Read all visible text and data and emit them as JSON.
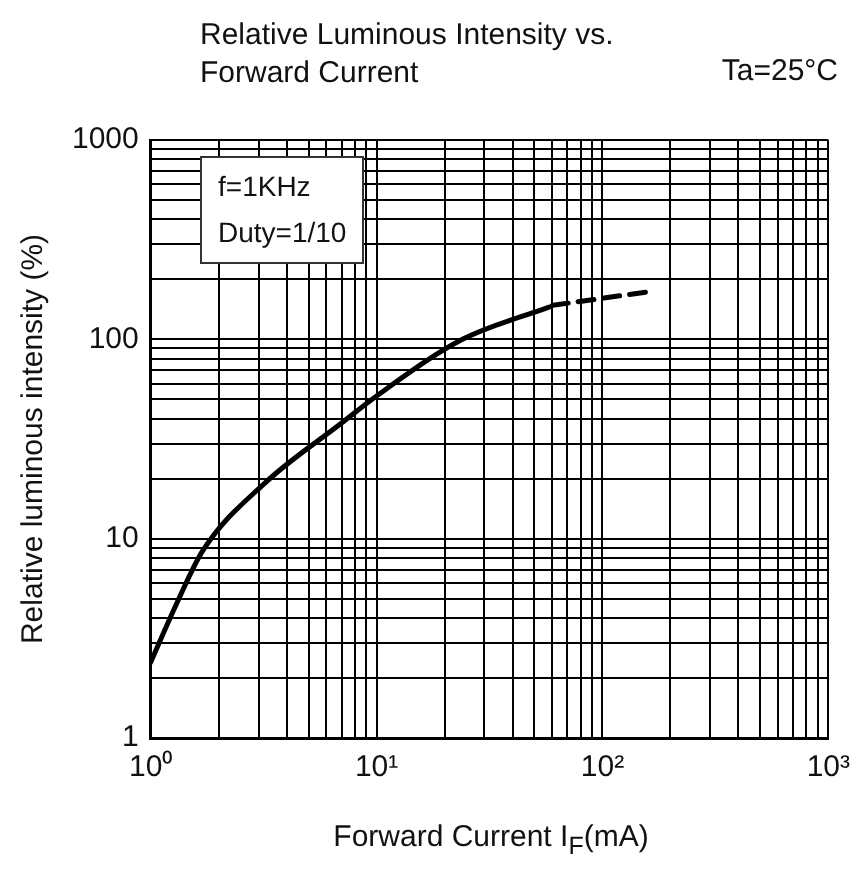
{
  "chart_data": {
    "type": "line",
    "title": "Relative Luminous Intensity vs. Forward Current",
    "xlabel": "Forward Current I$_{F}$(mA)",
    "ylabel": "Relative luminous intensity (%)",
    "annotations": [
      "Ta=25°C",
      "f=1KHz",
      "Duty=1/10"
    ],
    "log": "xy",
    "grid": true,
    "legend": false,
    "marker": "none",
    "xlim": [
      1,
      1000
    ],
    "ylim": [
      1,
      1000
    ],
    "xticks": [
      {
        "value": 1,
        "label": "10⁰"
      },
      {
        "value": 2,
        "label": null
      },
      {
        "value": 3,
        "label": null
      },
      {
        "value": 4,
        "label": null
      },
      {
        "value": 5,
        "label": null
      },
      {
        "value": 6,
        "label": null
      },
      {
        "value": 7,
        "label": null
      },
      {
        "value": 8,
        "label": null
      },
      {
        "value": 9,
        "label": null
      },
      {
        "value": 10,
        "label": "10¹"
      },
      {
        "value": 20,
        "label": null
      },
      {
        "value": 30,
        "label": null
      },
      {
        "value": 40,
        "label": null
      },
      {
        "value": 50,
        "label": null
      },
      {
        "value": 60,
        "label": null
      },
      {
        "value": 70,
        "label": null
      },
      {
        "value": 80,
        "label": null
      },
      {
        "value": 90,
        "label": null
      },
      {
        "value": 100,
        "label": "10²"
      },
      {
        "value": 200,
        "label": null
      },
      {
        "value": 300,
        "label": null
      },
      {
        "value": 400,
        "label": null
      },
      {
        "value": 500,
        "label": null
      },
      {
        "value": 600,
        "label": null
      },
      {
        "value": 700,
        "label": null
      },
      {
        "value": 800,
        "label": null
      },
      {
        "value": 900,
        "label": null
      },
      {
        "value": 1000,
        "label": "10³"
      }
    ],
    "yticks": [
      1,
      {
        "value": 2,
        "label": null
      },
      {
        "value": 3,
        "label": null
      },
      {
        "value": 4,
        "label": null
      },
      {
        "value": 5,
        "label": null
      },
      {
        "value": 6,
        "label": null
      },
      {
        "value": 7,
        "label": null
      },
      {
        "value": 8,
        "label": null
      },
      {
        "value": 9,
        "label": null
      },
      10,
      {
        "value": 20,
        "label": null
      },
      {
        "value": 30,
        "label": null
      },
      {
        "value": 40,
        "label": null
      },
      {
        "value": 50,
        "label": null
      },
      {
        "value": 60,
        "label": null
      },
      {
        "value": 70,
        "label": null
      },
      {
        "value": 80,
        "label": null
      },
      {
        "value": 90,
        "label": null
      },
      100,
      {
        "value": 200,
        "label": null
      },
      {
        "value": 300,
        "label": null
      },
      {
        "value": 400,
        "label": null
      },
      {
        "value": 500,
        "label": null
      },
      {
        "value": 600,
        "label": null
      },
      {
        "value": 700,
        "label": null
      },
      {
        "value": 800,
        "label": null
      },
      {
        "value": 900,
        "label": null
      },
      1000
    ],
    "series": [
      {
        "color": "#000000",
        "line_style": "solid",
        "x": [
          1,
          1.3,
          1.7,
          3.2,
          7,
          10,
          24,
          58
        ],
        "values": [
          2.4,
          4.7,
          8.7,
          19,
          38,
          52,
          100,
          145
        ]
      },
      {
        "color": "#000000",
        "line_style": "dashed",
        "x": [
          60,
          170
        ],
        "values": [
          148,
          175
        ]
      }
    ]
  }
}
